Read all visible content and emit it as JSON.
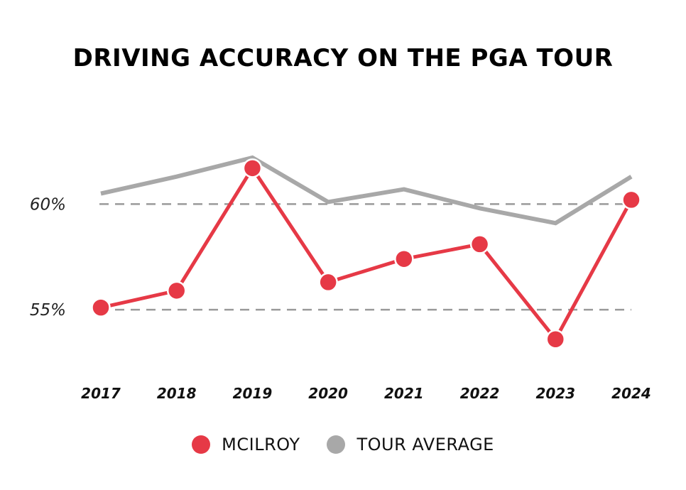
{
  "chart_data": {
    "type": "line",
    "title": "DRIVING ACCURACY ON THE PGA TOUR",
    "categories": [
      "2017",
      "2018",
      "2019",
      "2020",
      "2021",
      "2022",
      "2023",
      "2024"
    ],
    "series": [
      {
        "name": "MCILROY",
        "color": "#e63946",
        "values": [
          55.1,
          55.9,
          61.7,
          56.3,
          57.4,
          58.1,
          53.6,
          60.2
        ]
      },
      {
        "name": "TOUR AVERAGE",
        "color": "#a8a8a8",
        "values": [
          60.5,
          61.3,
          62.2,
          60.1,
          60.7,
          59.8,
          59.1,
          61.3
        ]
      }
    ],
    "yticks": [
      {
        "value": 60,
        "label": "60%"
      },
      {
        "value": 55,
        "label": "55%"
      }
    ],
    "ylim": [
      50.7,
      66.3
    ],
    "grid": "dashed at ticks",
    "legend_position": "bottom-center",
    "xlabel": "",
    "ylabel": ""
  }
}
